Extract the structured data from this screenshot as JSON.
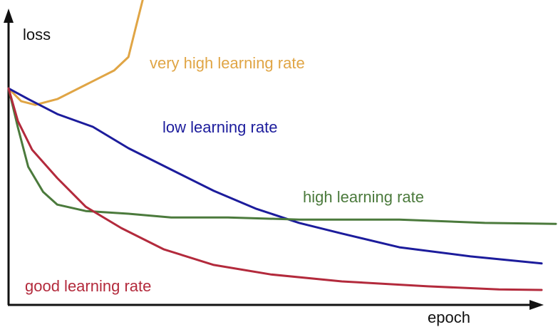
{
  "chart_data": {
    "type": "line",
    "x_label": "epoch",
    "y_label": "loss",
    "xlim": [
      0,
      100
    ],
    "ylim": [
      0,
      100
    ],
    "series": [
      {
        "name": "very high learning rate",
        "color": "#e0a545",
        "x": [
          0,
          2.3,
          4.9,
          8.9,
          14.1,
          19.3,
          21.9,
          23.2,
          24.5
        ],
        "values": [
          71,
          66.8,
          65.6,
          67.5,
          72.2,
          76.9,
          81.3,
          90.7,
          100
        ]
      },
      {
        "name": "low learning rate",
        "color": "#1c1c9c",
        "x": [
          0,
          3.6,
          8.9,
          15.4,
          21.9,
          29.7,
          37.5,
          45.3,
          53.1,
          60.9,
          71.4,
          84.4,
          97.4
        ],
        "values": [
          71,
          67.5,
          62.6,
          58.4,
          51.4,
          44.4,
          37.4,
          31.5,
          26.9,
          23.4,
          18.9,
          15.9,
          13.6
        ]
      },
      {
        "name": "high learning rate",
        "color": "#4b7a3c",
        "x": [
          0,
          1.7,
          3.6,
          6.3,
          8.9,
          14.1,
          21.9,
          29.7,
          40.1,
          53.1,
          71.4,
          87.0,
          100
        ],
        "values": [
          71,
          58.2,
          45.3,
          37.1,
          32.9,
          30.8,
          29.9,
          28.7,
          28.7,
          28.0,
          28.0,
          26.9,
          26.6
        ]
      },
      {
        "name": "good learning rate",
        "color": "#b32a3c",
        "x": [
          0,
          1.7,
          4.3,
          8.9,
          14.1,
          20.6,
          28.4,
          37.5,
          47.9,
          60.9,
          76.6,
          89.6,
          97.4
        ],
        "values": [
          71,
          60.3,
          50.9,
          41.6,
          32.2,
          25.2,
          18.2,
          13.1,
          10.0,
          7.7,
          6.1,
          5.1,
          4.9
        ]
      }
    ]
  }
}
